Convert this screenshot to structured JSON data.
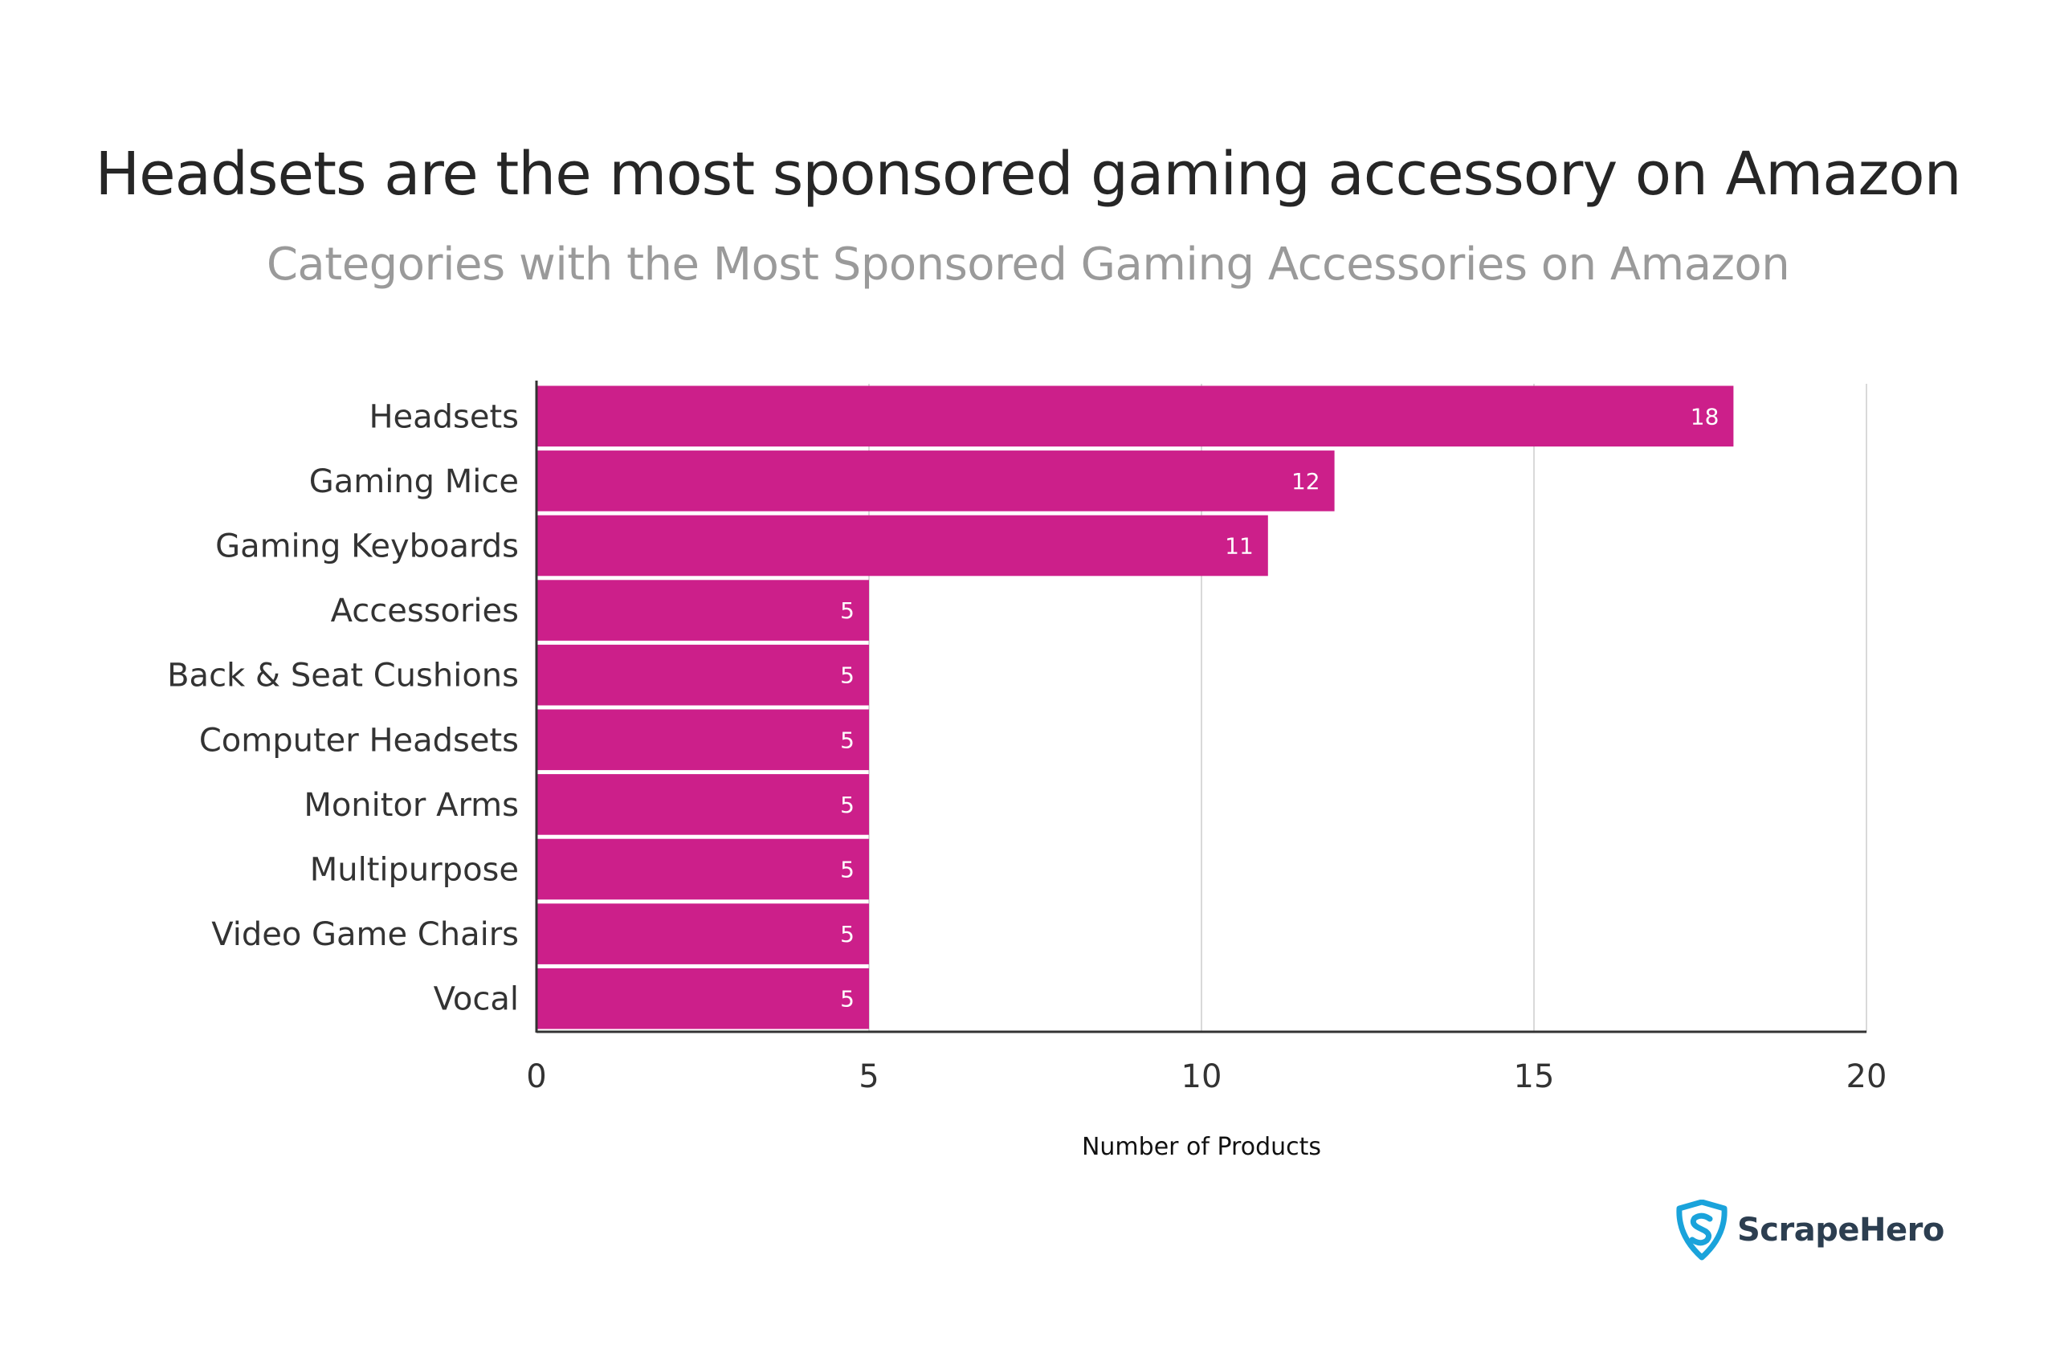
{
  "title": "Headsets are the most sponsored gaming accessory on Amazon",
  "subtitle": "Categories with the Most Sponsored Gaming Accessories on Amazon",
  "logo": {
    "text": "ScrapeHero",
    "icon": "shield-s-icon",
    "color": "#1aa3db"
  },
  "colors": {
    "bar": "#cc1f8a",
    "grid": "#d9d9d9",
    "axis": "#333333",
    "label": "#333333",
    "data_label": "#ffffff"
  },
  "chart_data": {
    "type": "bar",
    "orientation": "horizontal",
    "title": "Headsets are the most sponsored gaming accessory on Amazon",
    "subtitle": "Categories with the Most Sponsored Gaming Accessories on Amazon",
    "categories": [
      "Headsets",
      "Gaming Mice",
      "Gaming Keyboards",
      "Accessories",
      "Back & Seat Cushions",
      "Computer Headsets",
      "Monitor Arms",
      "Multipurpose",
      "Video Game Chairs",
      "Vocal"
    ],
    "values": [
      18,
      12,
      11,
      5,
      5,
      5,
      5,
      5,
      5,
      5
    ],
    "xlabel": "Number of Products",
    "ylabel": "",
    "xlim": [
      0,
      20
    ],
    "xticks": [
      0,
      5,
      10,
      15,
      20
    ],
    "grid": true,
    "data_labels": true,
    "legend": "none"
  }
}
